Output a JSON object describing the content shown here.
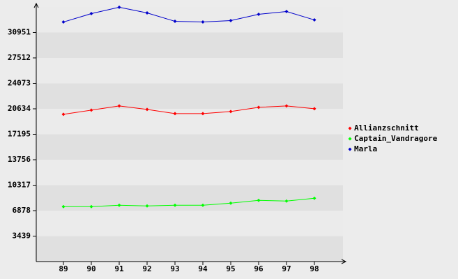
{
  "chart_data": {
    "type": "line",
    "categories": [
      "89",
      "90",
      "91",
      "92",
      "93",
      "94",
      "95",
      "96",
      "97",
      "98"
    ],
    "series": [
      {
        "name": "Allianzschnitt",
        "color": "#ff0000",
        "values": [
          19888,
          20455,
          21022,
          20549,
          19982,
          19982,
          20266,
          20833,
          21022,
          20644
        ]
      },
      {
        "name": "Captain_Vandragore",
        "color": "#00ff00",
        "values": [
          7417,
          7417,
          7606,
          7511,
          7606,
          7606,
          7889,
          8267,
          8173,
          8550
        ]
      },
      {
        "name": "Marla",
        "color": "#0000cc",
        "values": [
          32359,
          33493,
          34350,
          33588,
          32453,
          32359,
          32548,
          33398,
          33776,
          32642
        ]
      }
    ],
    "ylim": [
      0,
      34390
    ],
    "yticks": [
      3439,
      6878,
      10317,
      13756,
      17195,
      20634,
      24073,
      27512,
      30951
    ],
    "grid": true,
    "legend": "right"
  }
}
